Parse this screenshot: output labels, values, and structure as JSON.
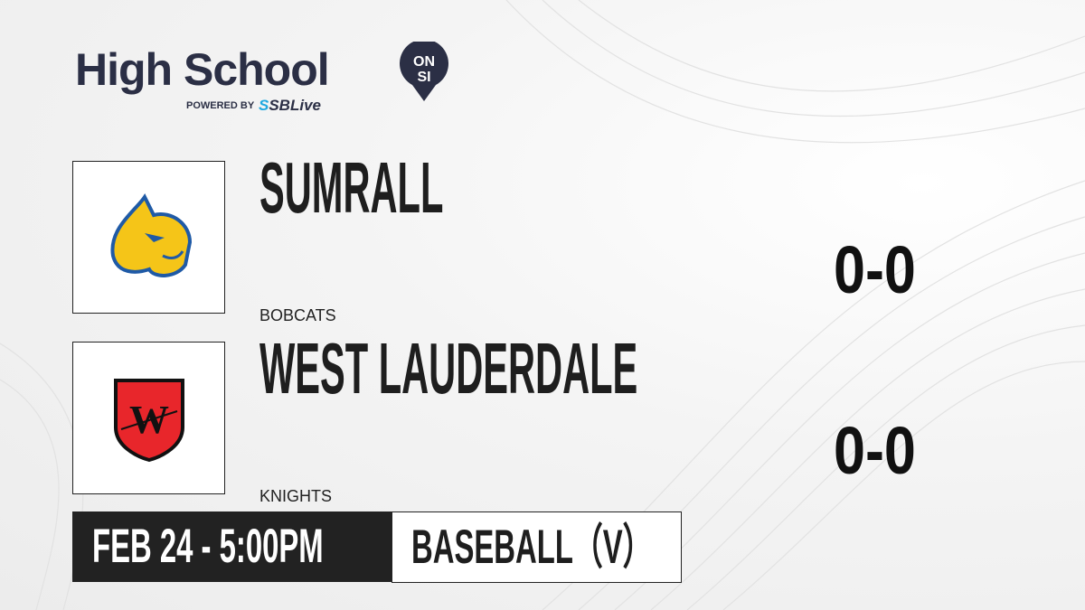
{
  "header": {
    "brand": "High School",
    "badge_top": "ON",
    "badge_bottom": "SI",
    "powered_by": "POWERED BY",
    "partner_prefix": "S",
    "partner": "SBLive"
  },
  "teams": [
    {
      "name": "SUMRALL",
      "mascot": "BOBCATS",
      "score": "0-0",
      "logo": "bobcat-logo",
      "colors": [
        "#f5c518",
        "#1f5aa6"
      ]
    },
    {
      "name": "WEST LAUDERDALE",
      "mascot": "KNIGHTS",
      "score": "0-0",
      "logo": "knight-shield-logo",
      "colors": [
        "#e8262b",
        "#111111"
      ]
    }
  ],
  "game": {
    "datetime": "FEB 24 - 5:00PM",
    "sport": "BASEBALL（V）"
  }
}
